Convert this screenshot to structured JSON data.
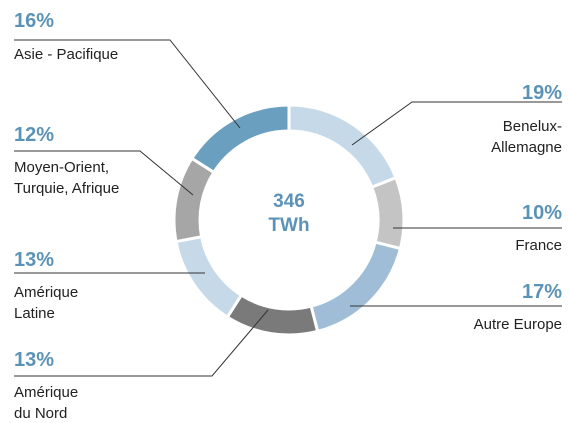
{
  "chart_data": {
    "type": "donut",
    "center_value": "346",
    "center_unit": "TWh",
    "categories": [
      "Benelux-\nAllemagne",
      "France",
      "Autre Europe",
      "Amérique\ndu Nord",
      "Amérique\nLatine",
      "Moyen-Orient,\nTurquie, Afrique",
      "Asie - Pacifique"
    ],
    "values": [
      19,
      10,
      17,
      13,
      13,
      12,
      16
    ],
    "value_labels": [
      "19%",
      "10%",
      "17%",
      "13%",
      "13%",
      "12%",
      "16%"
    ],
    "colors": [
      "#c5d9e8",
      "#c4c4c4",
      "#9fbdd6",
      "#7a7a7a",
      "#c5d9e8",
      "#a6a6a6",
      "#6a9fbf"
    ]
  }
}
